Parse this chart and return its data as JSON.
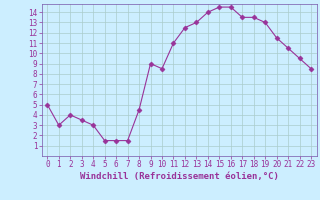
{
  "x": [
    0,
    1,
    2,
    3,
    4,
    5,
    6,
    7,
    8,
    9,
    10,
    11,
    12,
    13,
    14,
    15,
    16,
    17,
    18,
    19,
    20,
    21,
    22,
    23
  ],
  "y": [
    5,
    3,
    4,
    3.5,
    3,
    1.5,
    1.5,
    1.5,
    4.5,
    9,
    8.5,
    11,
    12.5,
    13,
    14,
    14.5,
    14.5,
    13.5,
    13.5,
    13,
    11.5,
    10.5,
    9.5,
    8.5
  ],
  "line_color": "#993399",
  "marker": "D",
  "markersize": 2.5,
  "linewidth": 0.8,
  "xlabel": "Windchill (Refroidissement éolien,°C)",
  "ylim": [
    0,
    14.8
  ],
  "xlim": [
    -0.5,
    23.5
  ],
  "yticks": [
    1,
    2,
    3,
    4,
    5,
    6,
    7,
    8,
    9,
    10,
    11,
    12,
    13,
    14
  ],
  "xticks": [
    0,
    1,
    2,
    3,
    4,
    5,
    6,
    7,
    8,
    9,
    10,
    11,
    12,
    13,
    14,
    15,
    16,
    17,
    18,
    19,
    20,
    21,
    22,
    23
  ],
  "bg_color": "#cceeff",
  "grid_color": "#aacccc",
  "tick_fontsize": 5.5,
  "label_fontsize": 6.5,
  "tick_color": "#993399",
  "axis_color": "#993399",
  "spine_color": "#7755aa"
}
